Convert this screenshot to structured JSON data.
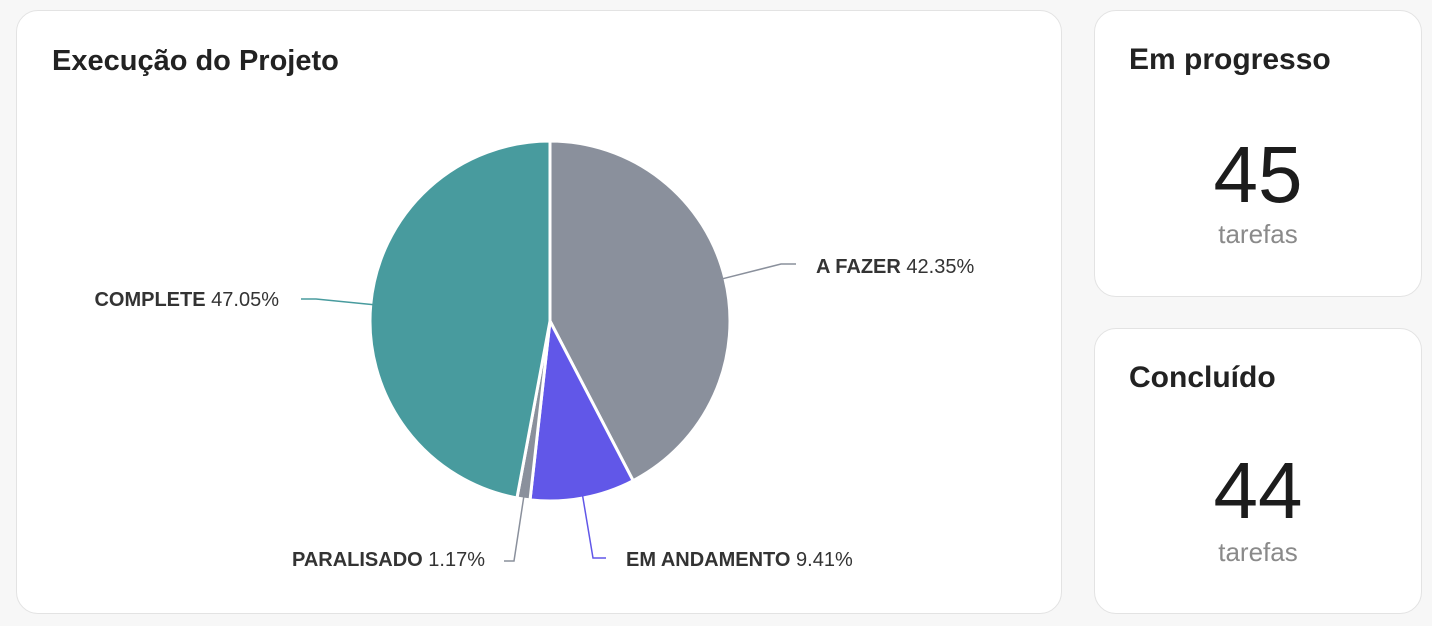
{
  "chart_data": {
    "type": "pie",
    "title": "Execução do Projeto",
    "categories": [
      "A FAZER",
      "EM ANDAMENTO",
      "PARALISADO",
      "COMPLETE"
    ],
    "values": [
      42.35,
      9.41,
      1.17,
      47.05
    ],
    "value_labels": [
      "42.35%",
      "9.41%",
      "1.17%",
      "47.05%"
    ],
    "colors": [
      "#8a909c",
      "#6157e8",
      "#8a909c",
      "#489b9e"
    ]
  },
  "cards": [
    {
      "title": "Em progresso",
      "value": 45,
      "unit": "tarefas"
    },
    {
      "title": "Concluído",
      "value": 44,
      "unit": "tarefas"
    }
  ]
}
